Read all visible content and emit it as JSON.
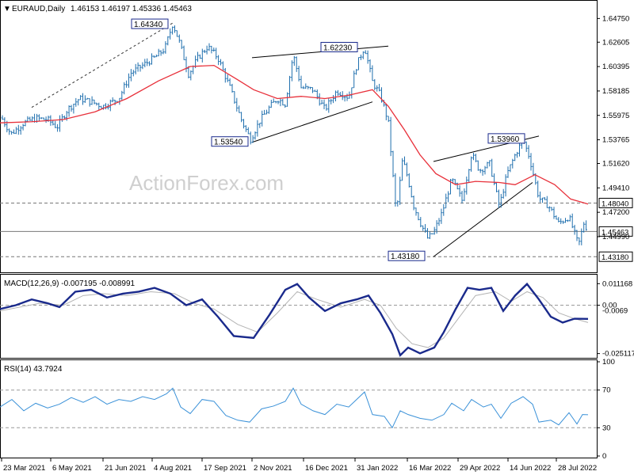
{
  "chart_data": [
    {
      "type": "candlestick",
      "header": {
        "symbol": "EURAUD,Daily",
        "ohlc": "1.46153 1.46197 1.45336 1.45463"
      },
      "watermark": "ActionForex.com",
      "ylim": [
        1.4205,
        1.6585
      ],
      "y_ticks": [
        "1.64750",
        "1.62605",
        "1.60395",
        "1.58185",
        "1.55975",
        "1.53765",
        "1.51620",
        "1.49410",
        "1.47200",
        "1.44990"
      ],
      "x_tick_labels": [
        "23 Mar 2021",
        "6 May 2021",
        "21 Jun 2021",
        "4 Aug 2021",
        "17 Sep 2021",
        "2 Nov 2021",
        "16 Dec 2021",
        "31 Jan 2022",
        "16 Mar 2022",
        "29 Apr 2022",
        "14 Jun 2022",
        "28 Jul 2022"
      ],
      "moving_average_color": "#e8303a",
      "candle_color": "#1f6fae",
      "horizontal_levels": [
        {
          "value": 1.4804,
          "label": "1.48040",
          "style": "dashed"
        },
        {
          "value": 1.45463,
          "label": "1.45463",
          "style": "solid"
        },
        {
          "value": 1.4318,
          "label": "1.43180",
          "style": "dashed"
        }
      ],
      "annotations": [
        {
          "label": "1.64340",
          "value": 1.6434
        },
        {
          "label": "1.62230",
          "value": 1.6223
        },
        {
          "label": "1.53540",
          "value": 1.5354
        },
        {
          "label": "1.53960",
          "value": 1.5396
        },
        {
          "label": "1.43180",
          "value": 1.4318
        }
      ],
      "price_path": [
        [
          0,
          1.56
        ],
        [
          14,
          1.543
        ],
        [
          30,
          1.553
        ],
        [
          45,
          1.557
        ],
        [
          60,
          1.556
        ],
        [
          72,
          1.549
        ],
        [
          85,
          1.565
        ],
        [
          100,
          1.575
        ],
        [
          115,
          1.572
        ],
        [
          130,
          1.568
        ],
        [
          150,
          1.575
        ],
        [
          165,
          1.598
        ],
        [
          180,
          1.605
        ],
        [
          195,
          1.612
        ],
        [
          208,
          1.62
        ],
        [
          218,
          1.643
        ],
        [
          226,
          1.627
        ],
        [
          238,
          1.597
        ],
        [
          250,
          1.612
        ],
        [
          262,
          1.622
        ],
        [
          275,
          1.612
        ],
        [
          290,
          1.585
        ],
        [
          305,
          1.555
        ],
        [
          316,
          1.538
        ],
        [
          328,
          1.555
        ],
        [
          340,
          1.567
        ],
        [
          350,
          1.575
        ],
        [
          360,
          1.57
        ],
        [
          370,
          1.615
        ],
        [
          380,
          1.585
        ],
        [
          395,
          1.583
        ],
        [
          410,
          1.565
        ],
        [
          425,
          1.582
        ],
        [
          440,
          1.576
        ],
        [
          450,
          1.605
        ],
        [
          460,
          1.622
        ],
        [
          470,
          1.59
        ],
        [
          480,
          1.578
        ],
        [
          490,
          1.554
        ],
        [
          500,
          1.47
        ],
        [
          508,
          1.52
        ],
        [
          515,
          1.502
        ],
        [
          522,
          1.478
        ],
        [
          532,
          1.46
        ],
        [
          540,
          1.448
        ],
        [
          548,
          1.455
        ],
        [
          558,
          1.472
        ],
        [
          570,
          1.502
        ],
        [
          583,
          1.483
        ],
        [
          595,
          1.525
        ],
        [
          605,
          1.51
        ],
        [
          618,
          1.516
        ],
        [
          630,
          1.477
        ],
        [
          640,
          1.507
        ],
        [
          650,
          1.524
        ],
        [
          660,
          1.538
        ],
        [
          668,
          1.522
        ],
        [
          680,
          1.485
        ],
        [
          692,
          1.478
        ],
        [
          705,
          1.462
        ],
        [
          718,
          1.468
        ],
        [
          730,
          1.442
        ],
        [
          737,
          1.463
        ],
        [
          742,
          1.4546
        ]
      ],
      "ma_path": [
        [
          0,
          1.553
        ],
        [
          40,
          1.554
        ],
        [
          80,
          1.556
        ],
        [
          120,
          1.563
        ],
        [
          160,
          1.575
        ],
        [
          200,
          1.591
        ],
        [
          240,
          1.604
        ],
        [
          270,
          1.605
        ],
        [
          300,
          1.592
        ],
        [
          320,
          1.583
        ],
        [
          350,
          1.575
        ],
        [
          380,
          1.577
        ],
        [
          410,
          1.575
        ],
        [
          440,
          1.578
        ],
        [
          470,
          1.583
        ],
        [
          490,
          1.568
        ],
        [
          510,
          1.547
        ],
        [
          530,
          1.524
        ],
        [
          550,
          1.507
        ],
        [
          575,
          1.497
        ],
        [
          600,
          1.5
        ],
        [
          630,
          1.499
        ],
        [
          650,
          1.497
        ],
        [
          675,
          1.506
        ],
        [
          700,
          1.497
        ],
        [
          720,
          1.484
        ],
        [
          742,
          1.4795
        ]
      ],
      "trendlines": [
        {
          "from": [
            318,
            1.612
          ],
          "to": [
            490,
            1.6225
          ]
        },
        {
          "from": [
            318,
            1.5354
          ],
          "to": [
            470,
            1.572
          ]
        },
        {
          "from": [
            547,
            1.518
          ],
          "to": [
            680,
            1.541
          ]
        },
        {
          "from": [
            547,
            1.4318
          ],
          "to": [
            672,
            1.499
          ]
        }
      ]
    },
    {
      "type": "line",
      "title": "MACD(12,26,9) -0.007195 -0.008991",
      "ylim": [
        -0.0265,
        0.015
      ],
      "y_ticks": [
        "0.011168",
        "0.00",
        "-0.025117"
      ],
      "extra_tick": "-0.0069",
      "zero_level": 0.0,
      "series": [
        {
          "color": "#1a2a8c",
          "points": [
            [
              0,
              -0.002
            ],
            [
              20,
              0.0
            ],
            [
              40,
              0.003
            ],
            [
              60,
              0.001
            ],
            [
              75,
              -0.001
            ],
            [
              95,
              0.007
            ],
            [
              115,
              0.008
            ],
            [
              135,
              0.004
            ],
            [
              155,
              0.006
            ],
            [
              175,
              0.007
            ],
            [
              195,
              0.009
            ],
            [
              215,
              0.006
            ],
            [
              235,
              0.0
            ],
            [
              255,
              0.003
            ],
            [
              275,
              -0.006
            ],
            [
              295,
              -0.016
            ],
            [
              320,
              -0.017
            ],
            [
              340,
              -0.005
            ],
            [
              360,
              0.008
            ],
            [
              375,
              0.011
            ],
            [
              390,
              0.004
            ],
            [
              410,
              -0.003
            ],
            [
              430,
              0.001
            ],
            [
              450,
              0.003
            ],
            [
              465,
              0.005
            ],
            [
              480,
              -0.004
            ],
            [
              495,
              -0.015
            ],
            [
              505,
              -0.026
            ],
            [
              515,
              -0.022
            ],
            [
              530,
              -0.025
            ],
            [
              548,
              -0.022
            ],
            [
              560,
              -0.014
            ],
            [
              575,
              -0.002
            ],
            [
              590,
              0.009
            ],
            [
              605,
              0.008
            ],
            [
              620,
              0.009
            ],
            [
              635,
              -0.003
            ],
            [
              650,
              0.005
            ],
            [
              665,
              0.011
            ],
            [
              680,
              0.003
            ],
            [
              695,
              -0.006
            ],
            [
              710,
              -0.009
            ],
            [
              725,
              -0.007
            ],
            [
              742,
              -0.0071
            ]
          ]
        },
        {
          "color": "#b3b3b3",
          "points": [
            [
              0,
              -0.003
            ],
            [
              25,
              -0.001
            ],
            [
              50,
              0.001
            ],
            [
              80,
              0.0
            ],
            [
              105,
              0.005
            ],
            [
              130,
              0.006
            ],
            [
              160,
              0.005
            ],
            [
              190,
              0.007
            ],
            [
              220,
              0.006
            ],
            [
              245,
              0.001
            ],
            [
              270,
              -0.002
            ],
            [
              300,
              -0.01
            ],
            [
              325,
              -0.014
            ],
            [
              350,
              -0.004
            ],
            [
              375,
              0.007
            ],
            [
              400,
              0.003
            ],
            [
              430,
              -0.001
            ],
            [
              460,
              0.003
            ],
            [
              480,
              0.0
            ],
            [
              500,
              -0.012
            ],
            [
              520,
              -0.02
            ],
            [
              540,
              -0.022
            ],
            [
              560,
              -0.017
            ],
            [
              580,
              -0.006
            ],
            [
              600,
              0.005
            ],
            [
              625,
              0.007
            ],
            [
              645,
              0.002
            ],
            [
              665,
              0.007
            ],
            [
              685,
              0.004
            ],
            [
              705,
              -0.004
            ],
            [
              725,
              -0.007
            ],
            [
              742,
              -0.009
            ]
          ]
        }
      ]
    },
    {
      "type": "line",
      "title": "RSI(14) 43.7924",
      "ylim": [
        0,
        100
      ],
      "y_ticks": [
        "100",
        "70",
        "30",
        "0"
      ],
      "series": [
        {
          "color": "#3a91d8",
          "points": [
            [
              0,
              52
            ],
            [
              15,
              60
            ],
            [
              30,
              48
            ],
            [
              45,
              56
            ],
            [
              60,
              51
            ],
            [
              75,
              55
            ],
            [
              90,
              62
            ],
            [
              105,
              57
            ],
            [
              120,
              63
            ],
            [
              135,
              55
            ],
            [
              150,
              60
            ],
            [
              165,
              58
            ],
            [
              180,
              63
            ],
            [
              195,
              60
            ],
            [
              210,
              66
            ],
            [
              218,
              72
            ],
            [
              228,
              52
            ],
            [
              240,
              45
            ],
            [
              255,
              60
            ],
            [
              270,
              58
            ],
            [
              285,
              43
            ],
            [
              300,
              38
            ],
            [
              315,
              36
            ],
            [
              330,
              50
            ],
            [
              345,
              53
            ],
            [
              360,
              58
            ],
            [
              370,
              72
            ],
            [
              380,
              55
            ],
            [
              395,
              48
            ],
            [
              410,
              44
            ],
            [
              425,
              55
            ],
            [
              440,
              52
            ],
            [
              450,
              60
            ],
            [
              460,
              68
            ],
            [
              470,
              44
            ],
            [
              485,
              42
            ],
            [
              495,
              30
            ],
            [
              505,
              48
            ],
            [
              515,
              44
            ],
            [
              530,
              40
            ],
            [
              545,
              38
            ],
            [
              560,
              44
            ],
            [
              570,
              56
            ],
            [
              585,
              48
            ],
            [
              595,
              60
            ],
            [
              610,
              52
            ],
            [
              620,
              55
            ],
            [
              632,
              40
            ],
            [
              645,
              56
            ],
            [
              660,
              63
            ],
            [
              672,
              55
            ],
            [
              680,
              36
            ],
            [
              695,
              38
            ],
            [
              705,
              33
            ],
            [
              718,
              46
            ],
            [
              728,
              34
            ],
            [
              735,
              44
            ],
            [
              742,
              43.8
            ]
          ]
        }
      ]
    }
  ]
}
